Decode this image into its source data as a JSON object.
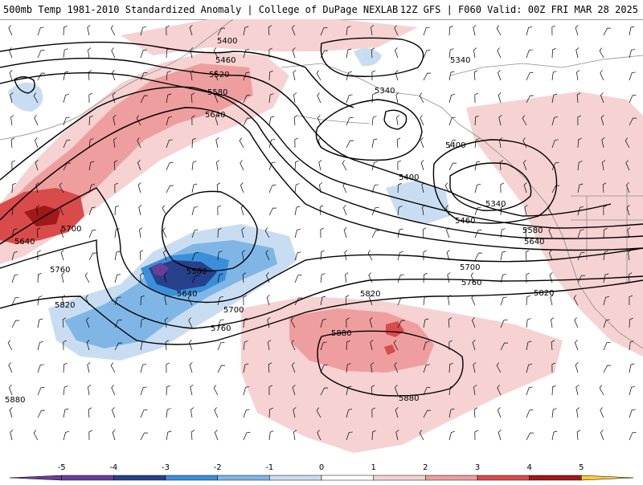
{
  "header": {
    "title": "500mb Temp 1981-2010 Standardized Anomaly | College of DuPage NEXLAB",
    "run_info": "12Z GFS | F060 Valid: 00Z FRI MAR 28 2025"
  },
  "colors": {
    "neg5": "#6a3d9a",
    "neg4": "#27408b",
    "neg3": "#3a8fd9",
    "neg2": "#7fb6e6",
    "neg1": "#c9ddf2",
    "zero": "#ffffff",
    "pos1": "#f6d2d2",
    "pos2": "#ee9e9e",
    "pos3": "#d94b4b",
    "pos4": "#a11818",
    "pos5": "#ffcc33",
    "contour": "#000000",
    "coast": "#8c8c8c"
  },
  "contour_labels": [
    {
      "id": "c5400a",
      "text": "5400"
    },
    {
      "id": "c5460a",
      "text": "5460"
    },
    {
      "id": "c5520a",
      "text": "5520"
    },
    {
      "id": "c5580a",
      "text": "5580"
    },
    {
      "id": "c5640a",
      "text": "5640"
    },
    {
      "id": "c5340a",
      "text": "5340"
    },
    {
      "id": "c5340b",
      "text": "5340"
    },
    {
      "id": "c5400b",
      "text": "5400"
    },
    {
      "id": "c5400c",
      "text": "5400"
    },
    {
      "id": "c5340c",
      "text": "5340"
    },
    {
      "id": "c5460b",
      "text": "5460"
    },
    {
      "id": "c5580b",
      "text": "5580"
    },
    {
      "id": "c5640b",
      "text": "5640"
    },
    {
      "id": "c5700a",
      "text": "5700"
    },
    {
      "id": "c5760a",
      "text": "5760"
    },
    {
      "id": "c5820a",
      "text": "5820"
    },
    {
      "id": "c5640c",
      "text": "5640"
    },
    {
      "id": "c5700b",
      "text": "5700"
    },
    {
      "id": "c5760b",
      "text": "5760"
    },
    {
      "id": "c5820b",
      "text": "5820"
    },
    {
      "id": "c5580c",
      "text": "5580"
    },
    {
      "id": "c5640d",
      "text": "5640"
    },
    {
      "id": "c5700c",
      "text": "5700"
    },
    {
      "id": "c5760c",
      "text": "5760"
    },
    {
      "id": "c5820c",
      "text": "5820"
    },
    {
      "id": "c5880a",
      "text": "5880"
    },
    {
      "id": "c5880b",
      "text": "5880"
    },
    {
      "id": "c5880c",
      "text": "5880"
    }
  ],
  "legend": {
    "ticks": [
      "-5",
      "-4",
      "-3",
      "-2",
      "-1",
      "0",
      "1",
      "2",
      "3",
      "4",
      "5"
    ]
  }
}
